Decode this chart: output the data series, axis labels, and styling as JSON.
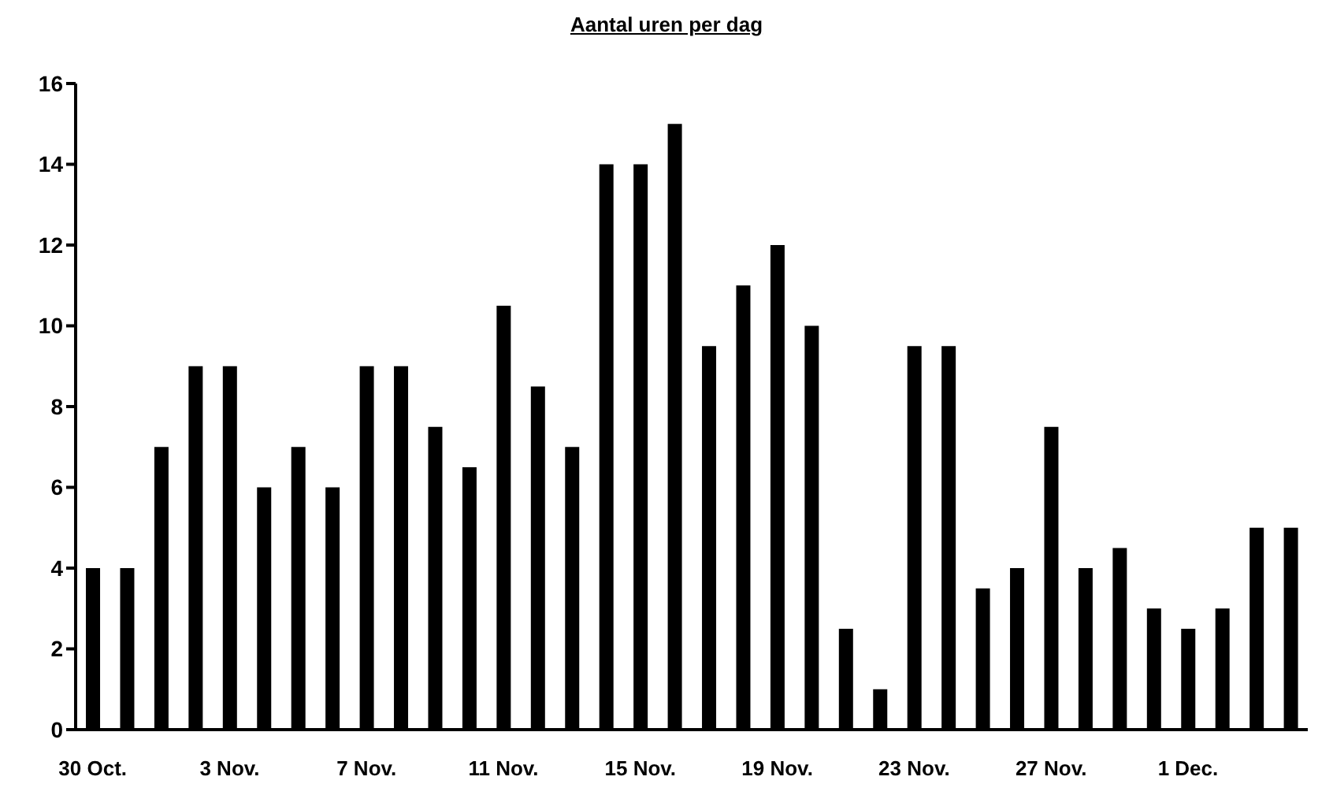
{
  "chart_data": {
    "type": "bar",
    "title": "Aantal uren per dag",
    "categories": [
      "30 Oct.",
      null,
      null,
      null,
      "3 Nov.",
      null,
      null,
      null,
      "7 Nov.",
      null,
      null,
      null,
      "11 Nov.",
      null,
      null,
      null,
      "15 Nov.",
      null,
      null,
      null,
      "19 Nov.",
      null,
      null,
      null,
      "23 Nov.",
      null,
      null,
      null,
      "27 Nov.",
      null,
      null,
      null,
      "1 Dec.",
      null,
      null,
      null
    ],
    "values": [
      4,
      4,
      7,
      9,
      9,
      6,
      7,
      6,
      9,
      9,
      7.5,
      6.5,
      10.5,
      8.5,
      7,
      14,
      14,
      15,
      9.5,
      11,
      12,
      10,
      2.5,
      1,
      9.5,
      9.5,
      3.5,
      4,
      7.5,
      4,
      4.5,
      3,
      2.5,
      3,
      5,
      5
    ],
    "color": "#000000",
    "ylim": [
      0,
      16
    ],
    "yticks": [
      0,
      2,
      4,
      6,
      8,
      10,
      12,
      14,
      16
    ],
    "grid": false,
    "legend": false
  }
}
